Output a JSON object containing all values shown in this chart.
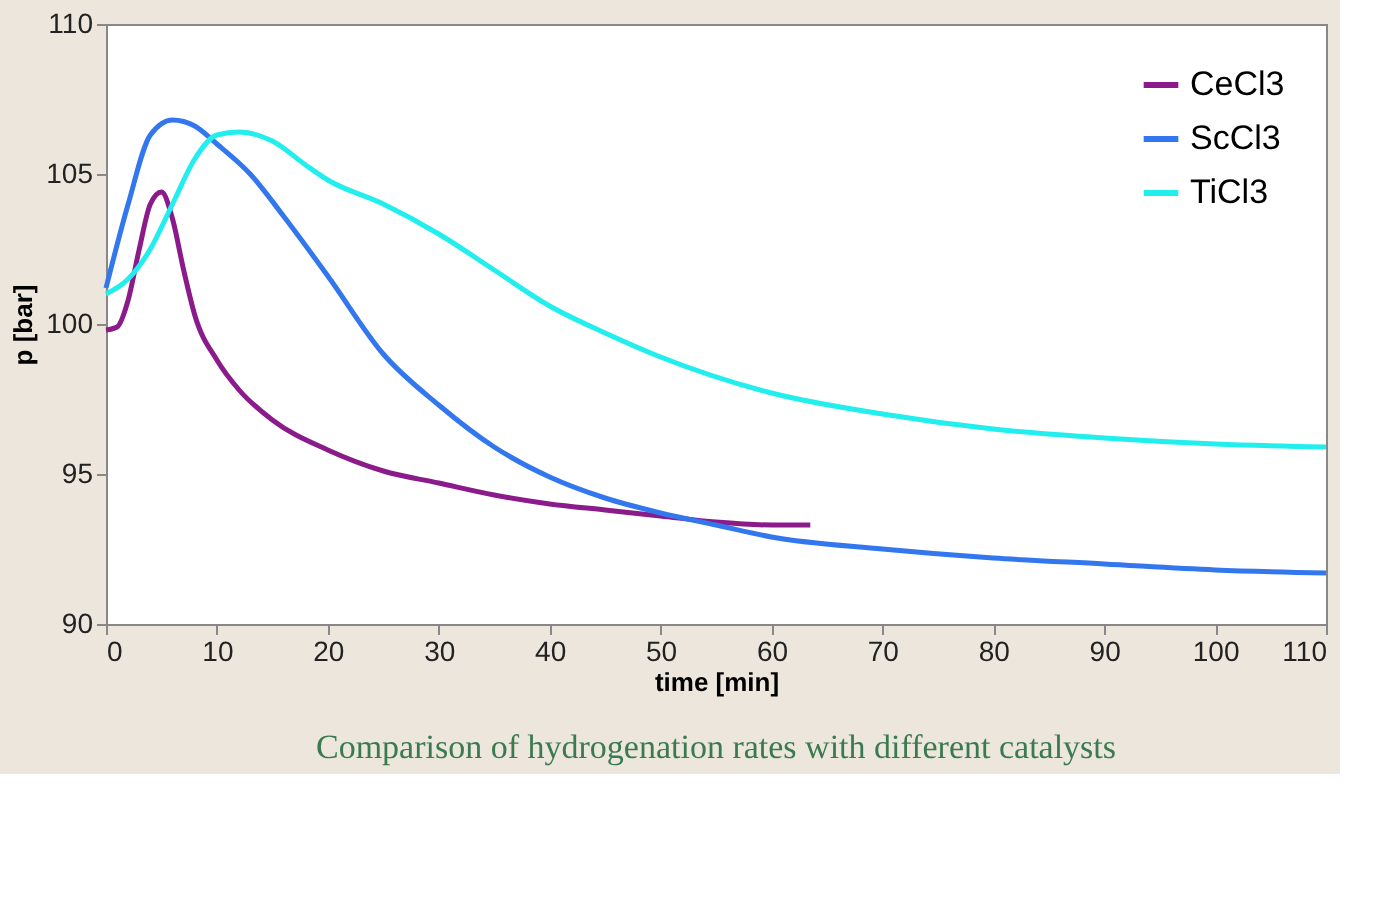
{
  "chart_data": {
    "type": "line",
    "xlabel": "time [min]",
    "ylabel": "p [bar]",
    "xlim": [
      0,
      110
    ],
    "xticks": [
      0,
      10,
      20,
      30,
      40,
      50,
      60,
      70,
      80,
      90,
      100,
      110
    ],
    "ylim": [
      90,
      110
    ],
    "yticks": [
      90,
      95,
      100,
      105,
      110
    ],
    "grid": false,
    "legend": "top right",
    "marker": "none",
    "line_style": "solid",
    "annotations": [
      "Comparison of hydrogenation rates with different catalysts"
    ],
    "series": [
      {
        "name": "CeCl3",
        "color": "#8b1a8b",
        "x": [
          0,
          1,
          2,
          3,
          4,
          5,
          6,
          7,
          8,
          10,
          12,
          15,
          20,
          25,
          30,
          35,
          40,
          45,
          50,
          55,
          60,
          63.5
        ],
        "values": [
          99.8,
          99.9,
          100.8,
          102.5,
          104,
          104.4,
          103.5,
          101.8,
          100.3,
          98.8,
          97.8,
          96.8,
          95.8,
          95.1,
          94.7,
          94.3,
          94.0,
          93.8,
          93.6,
          93.4,
          93.3,
          93.3
        ]
      },
      {
        "name": "ScCl3",
        "color": "#3377ee",
        "x": [
          0,
          2,
          4,
          6,
          8,
          10,
          13,
          16,
          20,
          25,
          30,
          35,
          40,
          45,
          50,
          55,
          60,
          70,
          80,
          90,
          100,
          110
        ],
        "values": [
          101.2,
          104,
          106.3,
          106.8,
          106.6,
          106,
          105,
          103.6,
          101.6,
          99,
          97.3,
          95.9,
          94.9,
          94.2,
          93.7,
          93.3,
          92.9,
          92.5,
          92.2,
          92.0,
          91.8,
          91.7
        ]
      },
      {
        "name": "TiCl3",
        "color": "#22eeee",
        "x": [
          0,
          2,
          4,
          6,
          8,
          10,
          12,
          15,
          18,
          20,
          25,
          30,
          35,
          40,
          45,
          50,
          60,
          70,
          80,
          90,
          100,
          110
        ],
        "values": [
          101,
          101.5,
          102.5,
          104,
          105.5,
          106.3,
          106.4,
          106.1,
          105.3,
          104.8,
          104,
          103,
          101.8,
          100.6,
          99.7,
          98.9,
          97.7,
          97,
          96.5,
          96.2,
          96,
          95.9
        ]
      }
    ]
  }
}
